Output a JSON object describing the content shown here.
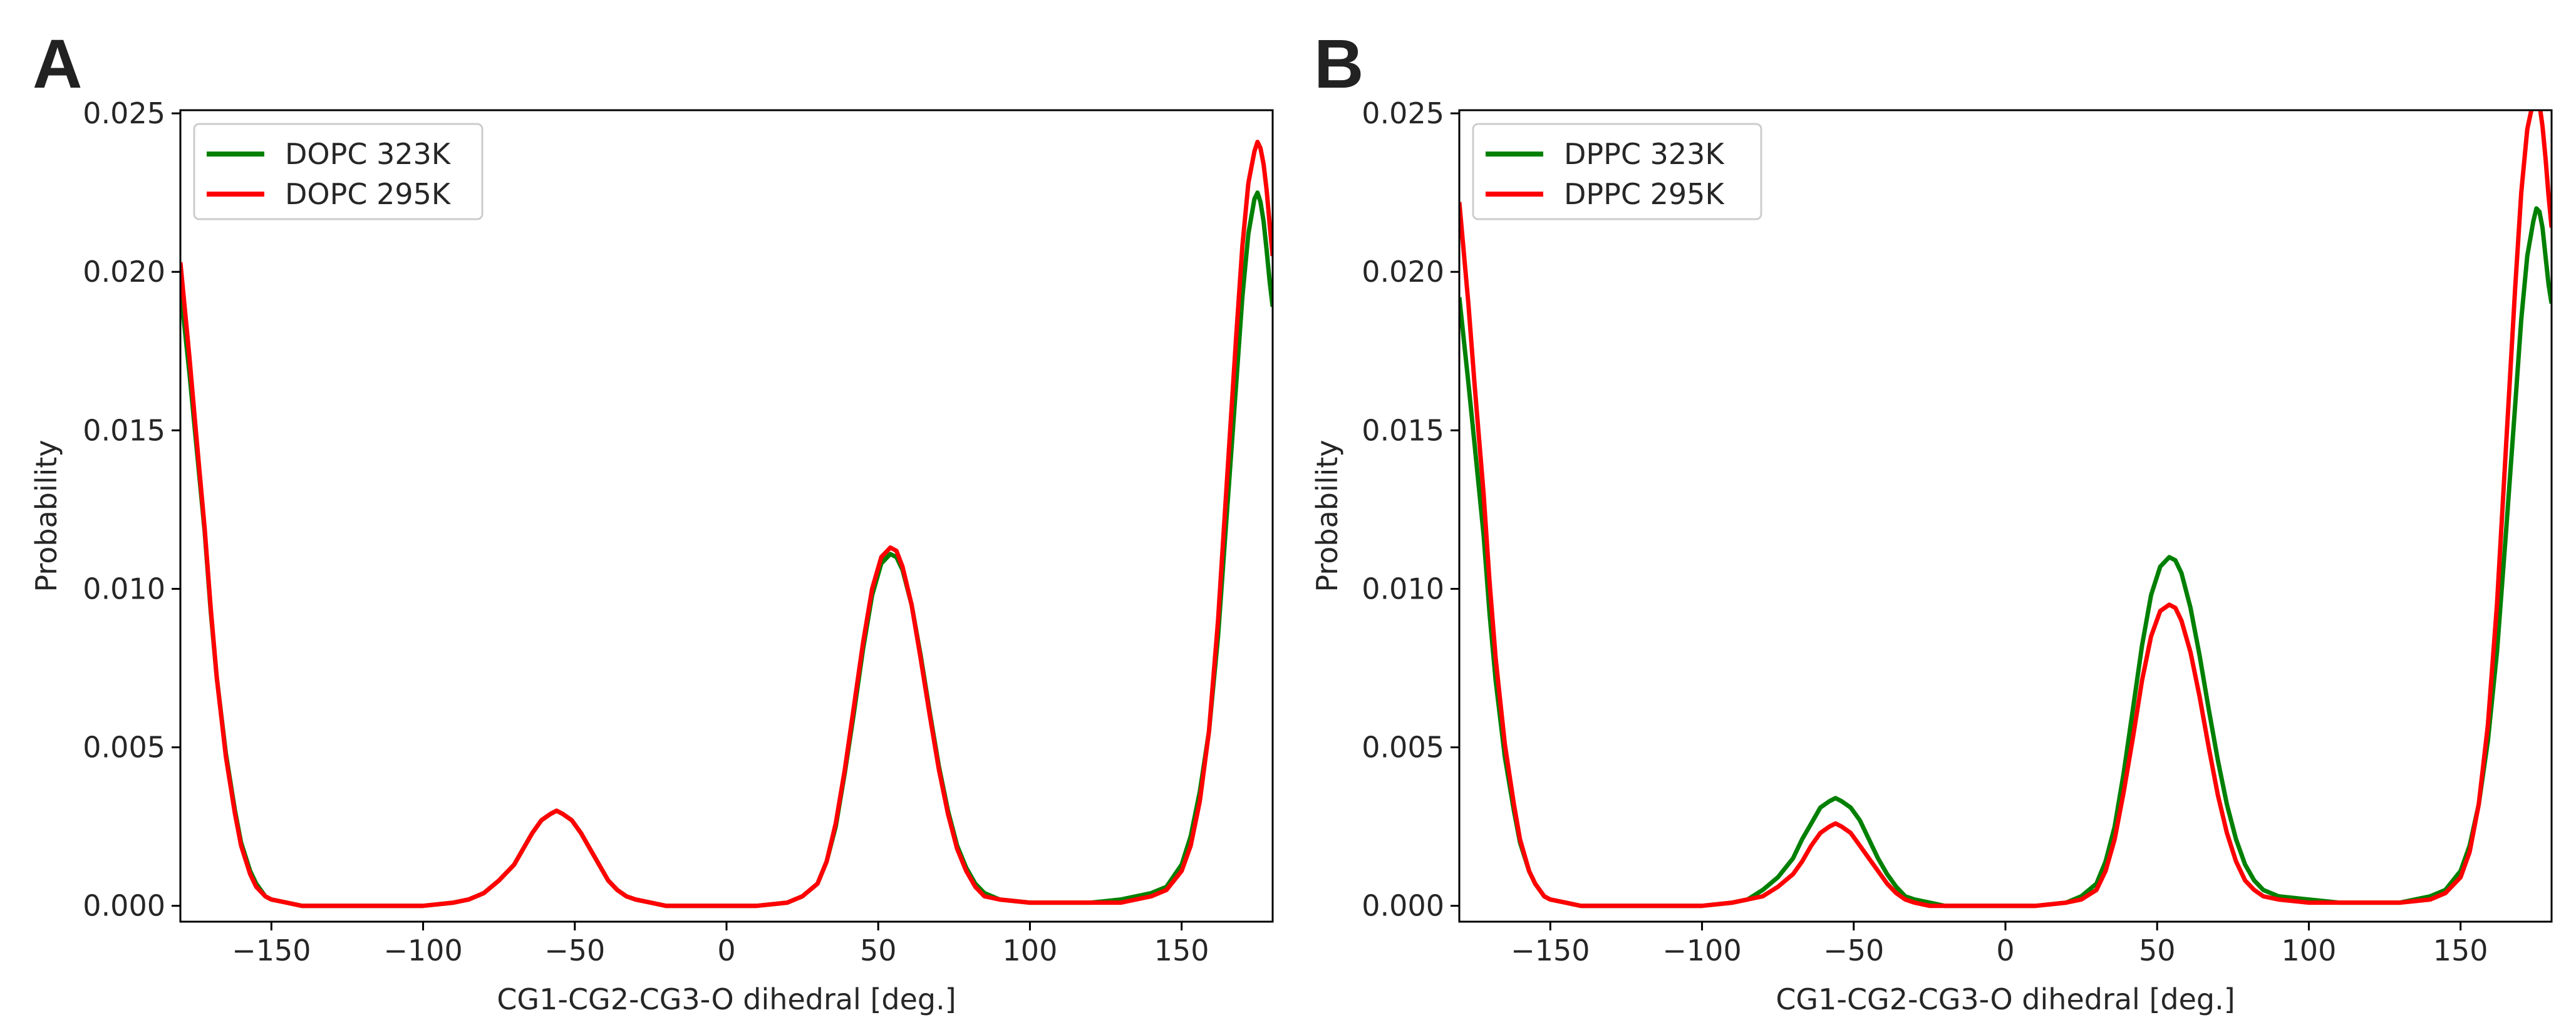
{
  "chart_data": [
    {
      "panel": "A",
      "type": "line",
      "title": "",
      "xlabel": "CG1-CG2-CG3-O dihedral [deg.]",
      "ylabel": "Probability",
      "xlim": [
        -180,
        180
      ],
      "ylim": [
        -0.0005,
        0.0251
      ],
      "xticks": [
        -150,
        -100,
        -50,
        0,
        50,
        100,
        150
      ],
      "xtick_labels": [
        "−150",
        "−100",
        "−50",
        "0",
        "50",
        "100",
        "150"
      ],
      "yticks": [
        0.0,
        0.005,
        0.01,
        0.015,
        0.02,
        0.025
      ],
      "ytick_labels": [
        "0.000",
        "0.005",
        "0.010",
        "0.015",
        "0.020",
        "0.025"
      ],
      "grid": false,
      "legend_position": "top-left",
      "series": [
        {
          "name": "DOPC 323K",
          "color": "#008000",
          "x": [
            -180,
            -177,
            -175,
            -172,
            -170,
            -168,
            -165,
            -162,
            -160,
            -157,
            -155,
            -152,
            -150,
            -145,
            -140,
            -130,
            -120,
            -110,
            -100,
            -90,
            -85,
            -80,
            -75,
            -70,
            -67,
            -64,
            -61,
            -58,
            -56,
            -54,
            -51,
            -48,
            -45,
            -42,
            -39,
            -36,
            -33,
            -30,
            -25,
            -20,
            -10,
            0,
            10,
            20,
            25,
            30,
            33,
            36,
            39,
            42,
            45,
            48,
            51,
            54,
            56,
            58,
            61,
            64,
            67,
            70,
            73,
            76,
            79,
            82,
            85,
            90,
            100,
            110,
            120,
            130,
            140,
            145,
            150,
            153,
            156,
            159,
            162,
            165,
            168,
            170,
            172,
            174,
            175,
            176,
            177,
            178,
            179,
            180
          ],
          "y": [
            0.0195,
            0.0168,
            0.0148,
            0.0118,
            0.0093,
            0.0072,
            0.0048,
            0.003,
            0.002,
            0.0011,
            0.0007,
            0.0003,
            0.0002,
            0.0001,
            0.0,
            0.0,
            0.0,
            0.0,
            0.0,
            0.0001,
            0.0002,
            0.0004,
            0.0008,
            0.0013,
            0.0018,
            0.0023,
            0.0027,
            0.0029,
            0.003,
            0.0029,
            0.0027,
            0.0023,
            0.0018,
            0.0013,
            0.0008,
            0.0005,
            0.0003,
            0.0002,
            0.0001,
            0.0,
            0.0,
            0.0,
            0.0,
            0.0001,
            0.0003,
            0.0007,
            0.0014,
            0.0025,
            0.0042,
            0.0061,
            0.0081,
            0.0098,
            0.0108,
            0.0111,
            0.011,
            0.0106,
            0.0095,
            0.0079,
            0.0061,
            0.0044,
            0.003,
            0.0019,
            0.0012,
            0.0007,
            0.0004,
            0.0002,
            0.0001,
            0.0001,
            0.0001,
            0.0002,
            0.0004,
            0.0006,
            0.0013,
            0.0022,
            0.0036,
            0.0055,
            0.0085,
            0.0125,
            0.0165,
            0.0192,
            0.0212,
            0.0223,
            0.0225,
            0.0222,
            0.0216,
            0.0207,
            0.0197,
            0.0189
          ]
        },
        {
          "name": "DOPC 295K",
          "color": "#ff0000",
          "x": [
            -180,
            -177,
            -175,
            -172,
            -170,
            -168,
            -165,
            -162,
            -160,
            -157,
            -155,
            -152,
            -150,
            -145,
            -140,
            -130,
            -120,
            -110,
            -100,
            -90,
            -85,
            -80,
            -75,
            -70,
            -67,
            -64,
            -61,
            -58,
            -56,
            -54,
            -51,
            -48,
            -45,
            -42,
            -39,
            -36,
            -33,
            -30,
            -25,
            -20,
            -10,
            0,
            10,
            20,
            25,
            30,
            33,
            36,
            39,
            42,
            45,
            48,
            51,
            54,
            56,
            58,
            61,
            64,
            67,
            70,
            73,
            76,
            79,
            82,
            85,
            90,
            100,
            110,
            120,
            130,
            140,
            145,
            150,
            153,
            156,
            159,
            162,
            165,
            168,
            170,
            172,
            174,
            175,
            176,
            177,
            178,
            179,
            180
          ],
          "y": [
            0.0203,
            0.0173,
            0.0151,
            0.0119,
            0.0094,
            0.0072,
            0.0047,
            0.0029,
            0.0019,
            0.001,
            0.0006,
            0.0003,
            0.0002,
            0.0001,
            0.0,
            0.0,
            0.0,
            0.0,
            0.0,
            0.0001,
            0.0002,
            0.0004,
            0.0008,
            0.0013,
            0.0018,
            0.0023,
            0.0027,
            0.0029,
            0.003,
            0.0029,
            0.0027,
            0.0023,
            0.0018,
            0.0013,
            0.0008,
            0.0005,
            0.0003,
            0.0002,
            0.0001,
            0.0,
            0.0,
            0.0,
            0.0,
            0.0001,
            0.0003,
            0.0007,
            0.0014,
            0.0026,
            0.0043,
            0.0063,
            0.0083,
            0.01,
            0.011,
            0.0113,
            0.0112,
            0.0107,
            0.0095,
            0.0078,
            0.006,
            0.0043,
            0.0029,
            0.0018,
            0.0011,
            0.0006,
            0.0003,
            0.0002,
            0.0001,
            0.0001,
            0.0001,
            0.0001,
            0.0003,
            0.0005,
            0.0011,
            0.0019,
            0.0033,
            0.0055,
            0.009,
            0.0135,
            0.018,
            0.0208,
            0.0228,
            0.0238,
            0.0241,
            0.0239,
            0.0234,
            0.0226,
            0.0215,
            0.0205
          ]
        }
      ]
    },
    {
      "panel": "B",
      "type": "line",
      "title": "",
      "xlabel": "CG1-CG2-CG3-O dihedral [deg.]",
      "ylabel": "Probability",
      "xlim": [
        -180,
        180
      ],
      "ylim": [
        -0.0005,
        0.0251
      ],
      "xticks": [
        -150,
        -100,
        -50,
        0,
        50,
        100,
        150
      ],
      "xtick_labels": [
        "−150",
        "−100",
        "−50",
        "0",
        "50",
        "100",
        "150"
      ],
      "yticks": [
        0.0,
        0.005,
        0.01,
        0.015,
        0.02,
        0.025
      ],
      "ytick_labels": [
        "0.000",
        "0.005",
        "0.010",
        "0.015",
        "0.020",
        "0.025"
      ],
      "grid": false,
      "legend_position": "top-left",
      "series": [
        {
          "name": "DPPC 323K",
          "color": "#008000",
          "x": [
            -180,
            -177,
            -175,
            -172,
            -170,
            -168,
            -165,
            -162,
            -160,
            -157,
            -155,
            -152,
            -150,
            -145,
            -140,
            -130,
            -120,
            -110,
            -100,
            -90,
            -85,
            -80,
            -75,
            -70,
            -67,
            -64,
            -61,
            -58,
            -56,
            -54,
            -51,
            -48,
            -45,
            -42,
            -39,
            -36,
            -33,
            -30,
            -25,
            -20,
            -10,
            0,
            10,
            20,
            25,
            30,
            33,
            36,
            39,
            42,
            45,
            48,
            51,
            54,
            56,
            58,
            61,
            64,
            67,
            70,
            73,
            76,
            79,
            82,
            85,
            90,
            100,
            110,
            120,
            130,
            140,
            145,
            150,
            153,
            156,
            159,
            162,
            165,
            168,
            170,
            172,
            174,
            175,
            176,
            177,
            178,
            179,
            180
          ],
          "y": [
            0.0192,
            0.0165,
            0.0146,
            0.0117,
            0.0092,
            0.0071,
            0.0047,
            0.003,
            0.002,
            0.0011,
            0.0007,
            0.0003,
            0.0002,
            0.0001,
            0.0,
            0.0,
            0.0,
            0.0,
            0.0,
            0.0001,
            0.0002,
            0.0005,
            0.0009,
            0.0015,
            0.0021,
            0.0026,
            0.0031,
            0.0033,
            0.0034,
            0.0033,
            0.0031,
            0.0027,
            0.0021,
            0.0015,
            0.001,
            0.0006,
            0.0003,
            0.0002,
            0.0001,
            0.0,
            0.0,
            0.0,
            0.0,
            0.0001,
            0.0003,
            0.0007,
            0.0014,
            0.0025,
            0.0042,
            0.0062,
            0.0082,
            0.0098,
            0.0107,
            0.011,
            0.0109,
            0.0105,
            0.0094,
            0.0079,
            0.0062,
            0.0046,
            0.0032,
            0.0021,
            0.0013,
            0.0008,
            0.0005,
            0.0003,
            0.0002,
            0.0001,
            0.0001,
            0.0001,
            0.0003,
            0.0005,
            0.0011,
            0.0019,
            0.0032,
            0.0052,
            0.008,
            0.0118,
            0.0158,
            0.0185,
            0.0205,
            0.0216,
            0.022,
            0.0219,
            0.0214,
            0.0205,
            0.0196,
            0.019
          ]
        },
        {
          "name": "DPPC 295K",
          "color": "#ff0000",
          "x": [
            -180,
            -177,
            -175,
            -172,
            -170,
            -168,
            -165,
            -162,
            -160,
            -157,
            -155,
            -152,
            -150,
            -145,
            -140,
            -130,
            -120,
            -110,
            -100,
            -90,
            -85,
            -80,
            -75,
            -70,
            -67,
            -64,
            -61,
            -58,
            -56,
            -54,
            -51,
            -48,
            -45,
            -42,
            -39,
            -36,
            -33,
            -30,
            -25,
            -20,
            -10,
            0,
            10,
            20,
            25,
            30,
            33,
            36,
            39,
            42,
            45,
            48,
            51,
            54,
            56,
            58,
            61,
            64,
            67,
            70,
            73,
            76,
            79,
            82,
            85,
            90,
            100,
            110,
            120,
            130,
            140,
            145,
            150,
            153,
            156,
            159,
            162,
            165,
            168,
            170,
            172,
            174,
            175,
            176,
            177,
            178,
            179,
            180
          ],
          "y": [
            0.0222,
            0.019,
            0.0165,
            0.013,
            0.0102,
            0.0078,
            0.0051,
            0.0032,
            0.0021,
            0.0011,
            0.0007,
            0.0003,
            0.0002,
            0.0001,
            0.0,
            0.0,
            0.0,
            0.0,
            0.0,
            0.0001,
            0.0002,
            0.0003,
            0.0006,
            0.001,
            0.0014,
            0.0019,
            0.0023,
            0.0025,
            0.0026,
            0.0025,
            0.0023,
            0.0019,
            0.0015,
            0.0011,
            0.0007,
            0.0004,
            0.0002,
            0.0001,
            0.0,
            0.0,
            0.0,
            0.0,
            0.0,
            0.0001,
            0.0002,
            0.0005,
            0.0011,
            0.0021,
            0.0036,
            0.0053,
            0.0071,
            0.0085,
            0.0093,
            0.0095,
            0.0094,
            0.009,
            0.008,
            0.0066,
            0.005,
            0.0035,
            0.0023,
            0.0014,
            0.0008,
            0.0005,
            0.0003,
            0.0002,
            0.0001,
            0.0001,
            0.0001,
            0.0001,
            0.0002,
            0.0004,
            0.0009,
            0.0017,
            0.0032,
            0.0057,
            0.0095,
            0.0145,
            0.0195,
            0.0225,
            0.0245,
            0.0254,
            0.0256,
            0.0253,
            0.0246,
            0.0236,
            0.0224,
            0.0214
          ]
        }
      ]
    }
  ]
}
